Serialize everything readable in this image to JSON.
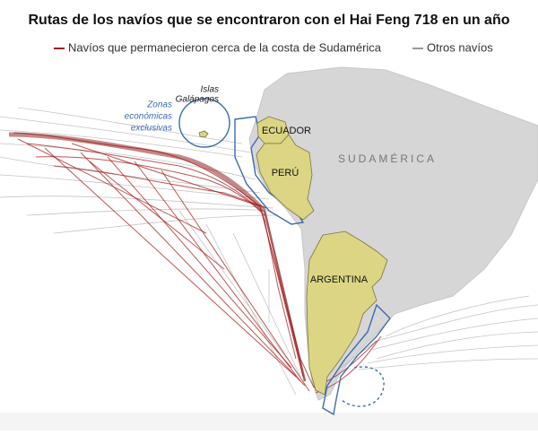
{
  "header": {
    "title": "Rutas de los navíos que se encontraron con el Hai Feng 718 en un año"
  },
  "legend": {
    "items": [
      {
        "label": "Navíos que permanecieron cerca de la costa de Sudamérica"
      },
      {
        "label": "Otros navíos"
      }
    ]
  },
  "map": {
    "labels": {
      "galapagos": [
        "Islas",
        "Galápagos"
      ],
      "eez": [
        "Zonas",
        "económicas",
        "exclusivas"
      ],
      "ecuador": "ECUADOR",
      "peru": "PERÚ",
      "argentina": "ARGENTINA",
      "region": "SUDAMÉRICA"
    }
  }
}
